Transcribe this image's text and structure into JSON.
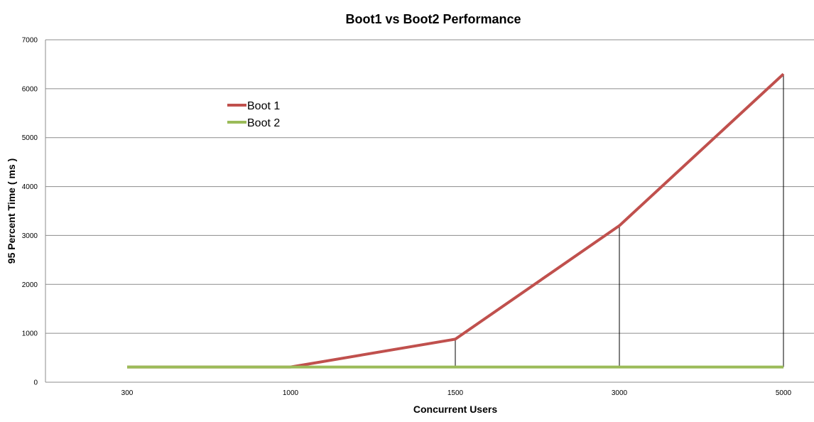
{
  "chart_data": {
    "type": "line",
    "title": "Boot1 vs Boot2 Performance",
    "xlabel": "Concurrent Users",
    "ylabel": "95 Percent Time ( ms )",
    "categories": [
      "300",
      "1000",
      "1500",
      "3000",
      "5000"
    ],
    "ylim": [
      0,
      7000
    ],
    "yticks": [
      0,
      1000,
      2000,
      3000,
      4000,
      5000,
      6000,
      7000
    ],
    "grid": true,
    "legend_position": "upper-left",
    "series": [
      {
        "name": "Boot 1",
        "color": "#c0504d",
        "values": [
          310,
          310,
          880,
          3200,
          6300
        ]
      },
      {
        "name": "Boot 2",
        "color": "#9bbb59",
        "values": [
          310,
          310,
          310,
          310,
          310
        ]
      }
    ],
    "drop_lines": true
  }
}
